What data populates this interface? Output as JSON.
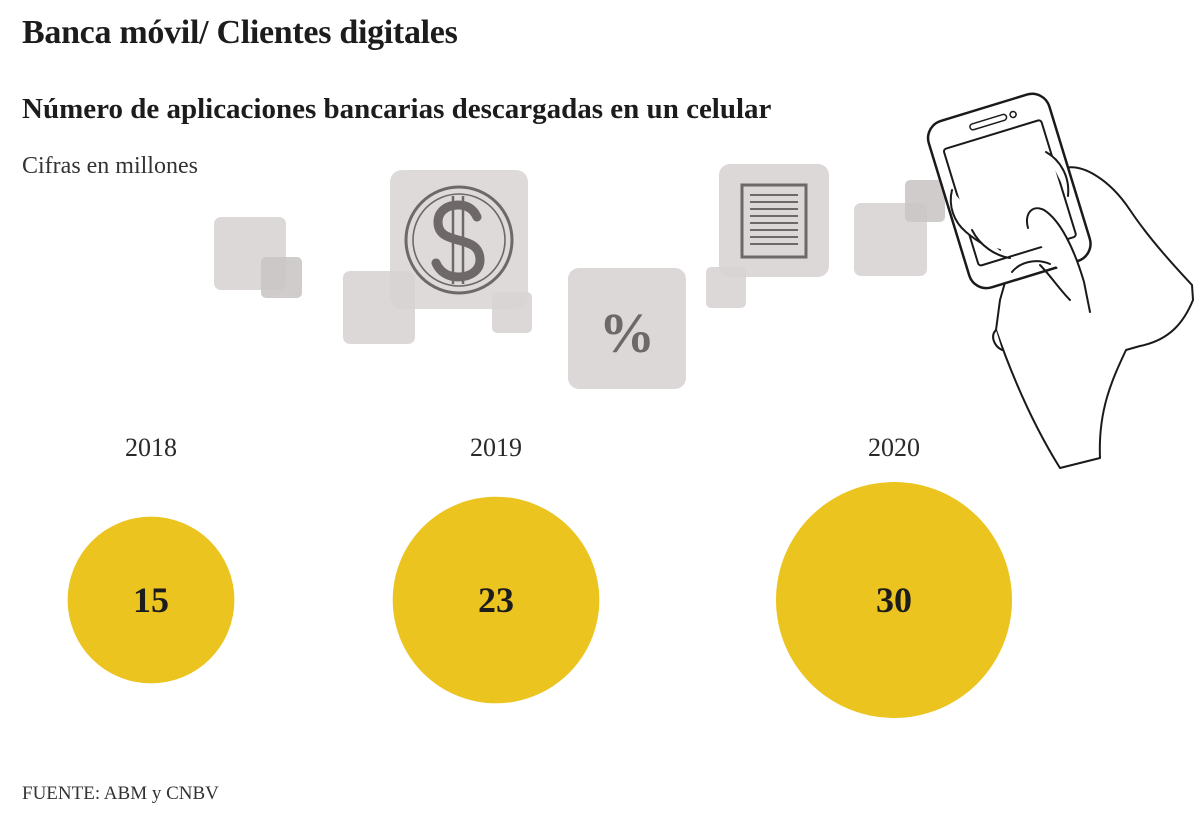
{
  "header": {
    "title": "Banca móvil/ Clientes digitales",
    "subtitle": "Número de aplicaciones bancarias descargadas en un celular",
    "note": "Cifras en millones"
  },
  "source": "FUENTE: ABM y CNBV",
  "colors": {
    "bubble": "#ECC41F",
    "tile": "#D8D4D4",
    "icon_ink": "#6E6868",
    "hand_outline": "#1a1a1a"
  },
  "icons": [
    "dollar-coin-icon",
    "percent-icon",
    "document-icon",
    "smartphone-in-hand-icon"
  ],
  "icon_text": {
    "percent": "%"
  },
  "chart_data": {
    "type": "bubble",
    "categories": [
      "2018",
      "2019",
      "2020"
    ],
    "values": [
      15,
      23,
      30
    ],
    "value_labels": [
      "15",
      "23",
      "30"
    ]
  }
}
